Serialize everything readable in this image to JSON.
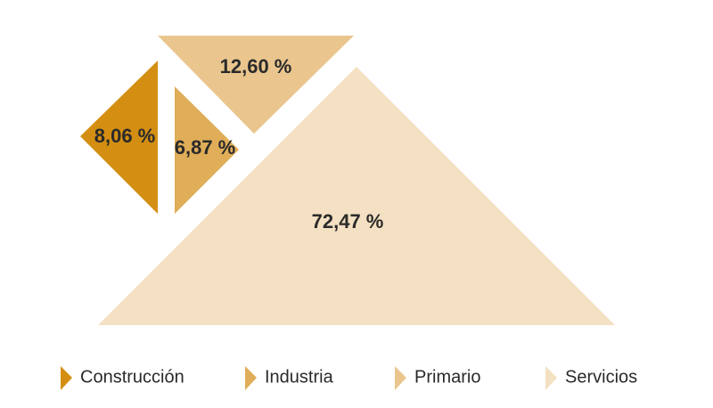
{
  "chart_data": {
    "type": "tangram",
    "categories": [
      "Construcción",
      "Industria",
      "Primario",
      "Servicios"
    ],
    "values": [
      8.06,
      6.87,
      12.6,
      72.47
    ],
    "value_labels": [
      "8,06 %",
      "6,87 %",
      "12,60 %",
      "72,47 %"
    ],
    "colors": [
      "#d48f12",
      "#e0ad58",
      "#eac68e",
      "#f4e0c2"
    ]
  }
}
